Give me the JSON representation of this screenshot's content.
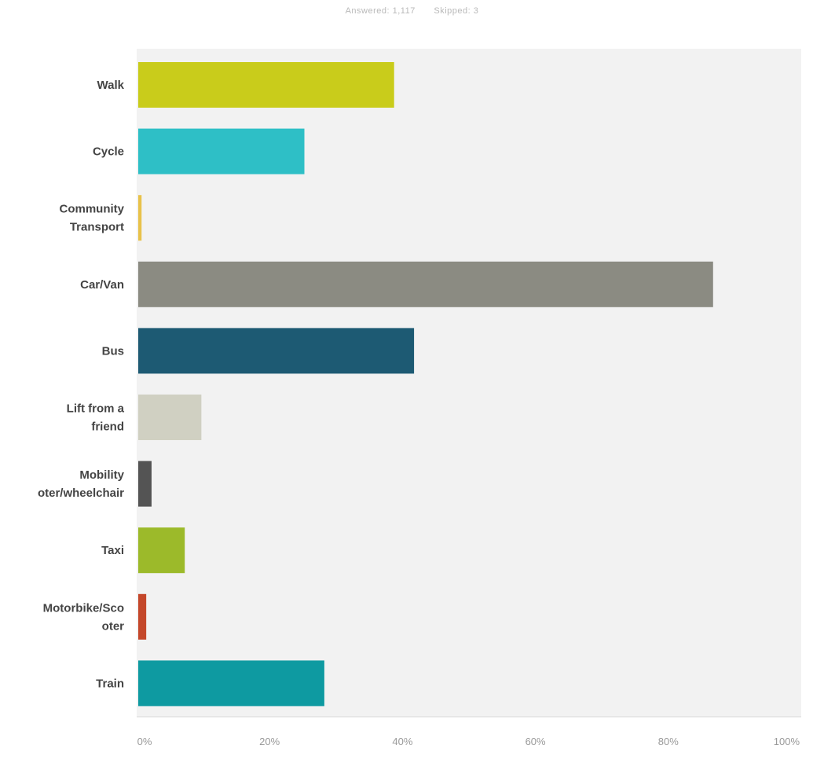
{
  "header": {
    "answered": "Answered: 1,117",
    "skipped": "Skipped: 3"
  },
  "chart_data": {
    "type": "bar",
    "orientation": "horizontal",
    "categories": [
      [
        "Walk"
      ],
      [
        "Cycle"
      ],
      [
        "Community",
        "Transport"
      ],
      [
        "Car/Van"
      ],
      [
        "Bus"
      ],
      [
        "Lift from a",
        "friend"
      ],
      [
        "Mobility",
        "oter/wheelchair"
      ],
      [
        "Taxi"
      ],
      [
        "Motorbike/Sco",
        "oter"
      ],
      [
        "Train"
      ]
    ],
    "values": [
      38.5,
      25,
      0.5,
      86.5,
      41.5,
      9.5,
      2,
      7,
      1.2,
      28
    ],
    "colors": [
      "#c9cc1b",
      "#2ebfc6",
      "#e8c24a",
      "#8b8b82",
      "#1d5a73",
      "#d0d0c2",
      "#545454",
      "#9cba2a",
      "#c4472a",
      "#0e9aa1"
    ],
    "xlim": [
      0,
      100
    ],
    "ticks": [
      "0%",
      "20%",
      "40%",
      "60%",
      "80%",
      "100%"
    ],
    "tick_values": [
      0,
      20,
      40,
      60,
      80,
      100
    ],
    "plot_background": "#f2f2f2",
    "grid": false
  }
}
